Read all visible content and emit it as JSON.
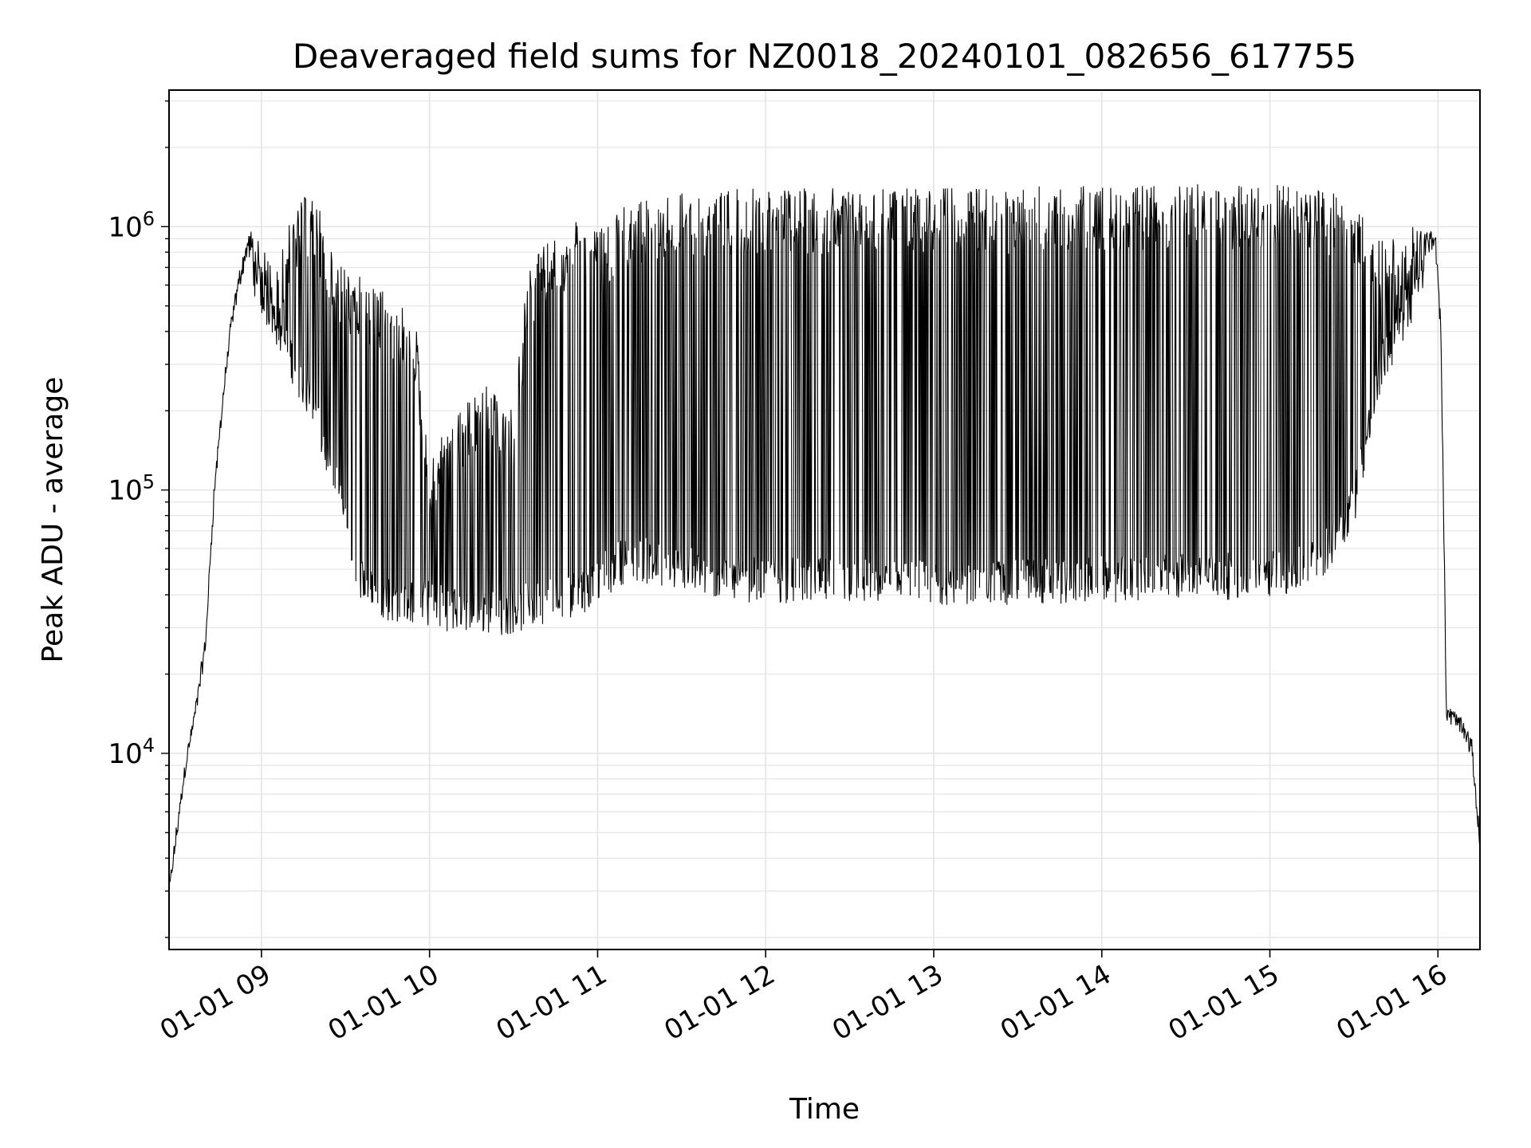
{
  "chart_data": {
    "type": "line",
    "title": "Deaveraged field sums for NZ0018_20240101_082656_617755",
    "xlabel": "Time",
    "ylabel": "Peak ADU - average",
    "yscale": "log",
    "xlim": [
      "2024-01-01 08:27",
      "2024-01-01 16:15"
    ],
    "ylim": [
      1800,
      3300000
    ],
    "x_ticks": [
      {
        "value": "2024-01-01 09:00",
        "label": "01-01 09"
      },
      {
        "value": "2024-01-01 10:00",
        "label": "01-01 10"
      },
      {
        "value": "2024-01-01 11:00",
        "label": "01-01 11"
      },
      {
        "value": "2024-01-01 12:00",
        "label": "01-01 12"
      },
      {
        "value": "2024-01-01 13:00",
        "label": "01-01 13"
      },
      {
        "value": "2024-01-01 14:00",
        "label": "01-01 14"
      },
      {
        "value": "2024-01-01 15:00",
        "label": "01-01 15"
      },
      {
        "value": "2024-01-01 16:00",
        "label": "01-01 16"
      }
    ],
    "y_ticks": [
      {
        "value": 10000,
        "base": "10",
        "exp": "4"
      },
      {
        "value": 100000,
        "base": "10",
        "exp": "5"
      },
      {
        "value": 1000000,
        "base": "10",
        "exp": "6"
      }
    ],
    "grid": true,
    "line_color": "#000000",
    "series": [
      {
        "x": [
          "2024-01-01 08:27",
          "2024-01-01 08:30",
          "2024-01-01 08:33",
          "2024-01-01 08:36",
          "2024-01-01 08:40",
          "2024-01-01 08:43",
          "2024-01-01 08:46",
          "2024-01-01 08:49",
          "2024-01-01 08:52",
          "2024-01-01 08:55",
          "2024-01-01 08:58",
          "2024-01-01 09:02",
          "2024-01-01 09:06",
          "2024-01-01 09:10",
          "2024-01-01 09:15",
          "2024-01-01 09:20",
          "2024-01-01 09:25",
          "2024-01-01 09:30",
          "2024-01-01 09:35",
          "2024-01-01 09:40",
          "2024-01-01 09:45",
          "2024-01-01 09:50",
          "2024-01-01 09:55",
          "2024-01-01 10:00",
          "2024-01-01 10:05",
          "2024-01-01 10:10",
          "2024-01-01 10:15",
          "2024-01-01 10:20",
          "2024-01-01 10:25",
          "2024-01-01 10:30",
          "2024-01-01 10:35",
          "2024-01-01 10:40",
          "2024-01-01 10:45",
          "2024-01-01 10:50",
          "2024-01-01 10:55",
          "2024-01-01 11:00",
          "2024-01-01 11:05",
          "2024-01-01 11:10",
          "2024-01-01 11:15",
          "2024-01-01 11:20",
          "2024-01-01 11:30",
          "2024-01-01 11:40",
          "2024-01-01 11:50",
          "2024-01-01 12:00",
          "2024-01-01 12:15",
          "2024-01-01 12:30",
          "2024-01-01 12:45",
          "2024-01-01 13:00",
          "2024-01-01 13:15",
          "2024-01-01 13:30",
          "2024-01-01 13:45",
          "2024-01-01 14:00",
          "2024-01-01 14:15",
          "2024-01-01 14:30",
          "2024-01-01 14:45",
          "2024-01-01 15:00",
          "2024-01-01 15:10",
          "2024-01-01 15:20",
          "2024-01-01 15:30",
          "2024-01-01 15:40",
          "2024-01-01 15:50",
          "2024-01-01 15:55",
          "2024-01-01 15:59",
          "2024-01-01 16:01",
          "2024-01-01 16:02",
          "2024-01-01 16:03",
          "2024-01-01 16:06",
          "2024-01-01 16:09",
          "2024-01-01 16:12",
          "2024-01-01 16:15"
        ],
        "y_low": [
          2900,
          5000,
          9000,
          13000,
          25000,
          90000,
          200000,
          400000,
          600000,
          800000,
          650000,
          500000,
          420000,
          330000,
          250000,
          180000,
          120000,
          80000,
          48000,
          40000,
          39000,
          38000,
          38000,
          37000,
          36000,
          35000,
          34000,
          35000,
          34000,
          35000,
          36000,
          38000,
          39000,
          40000,
          42000,
          45000,
          50000,
          55000,
          55000,
          52000,
          50000,
          47000,
          46000,
          46000,
          45000,
          45000,
          44000,
          44000,
          44000,
          45000,
          45000,
          46000,
          46000,
          47000,
          47000,
          48000,
          50000,
          58000,
          90000,
          300000,
          500000,
          700000,
          900000,
          400000,
          80000,
          14000,
          13000,
          12000,
          10000,
          4500
        ],
        "y_high": [
          3000,
          5500,
          9500,
          14000,
          27000,
          100000,
          220000,
          420000,
          650000,
          900000,
          1000000,
          780000,
          700000,
          1100000,
          1300000,
          1250000,
          800000,
          700000,
          650000,
          600000,
          550000,
          500000,
          450000,
          120000,
          190000,
          200000,
          230000,
          250000,
          220000,
          200000,
          700000,
          850000,
          900000,
          1000000,
          1100000,
          950000,
          1100000,
          1200000,
          1250000,
          1300000,
          1350000,
          1350000,
          1400000,
          1400000,
          1400000,
          1400000,
          1400000,
          1400000,
          1400000,
          1400000,
          1450000,
          1450000,
          1450000,
          1450000,
          1450000,
          1450000,
          1450000,
          1400000,
          1200000,
          900000,
          1000000,
          1000000,
          950000,
          450000,
          90000,
          15000,
          14000,
          13000,
          11000,
          4600
        ]
      }
    ]
  }
}
